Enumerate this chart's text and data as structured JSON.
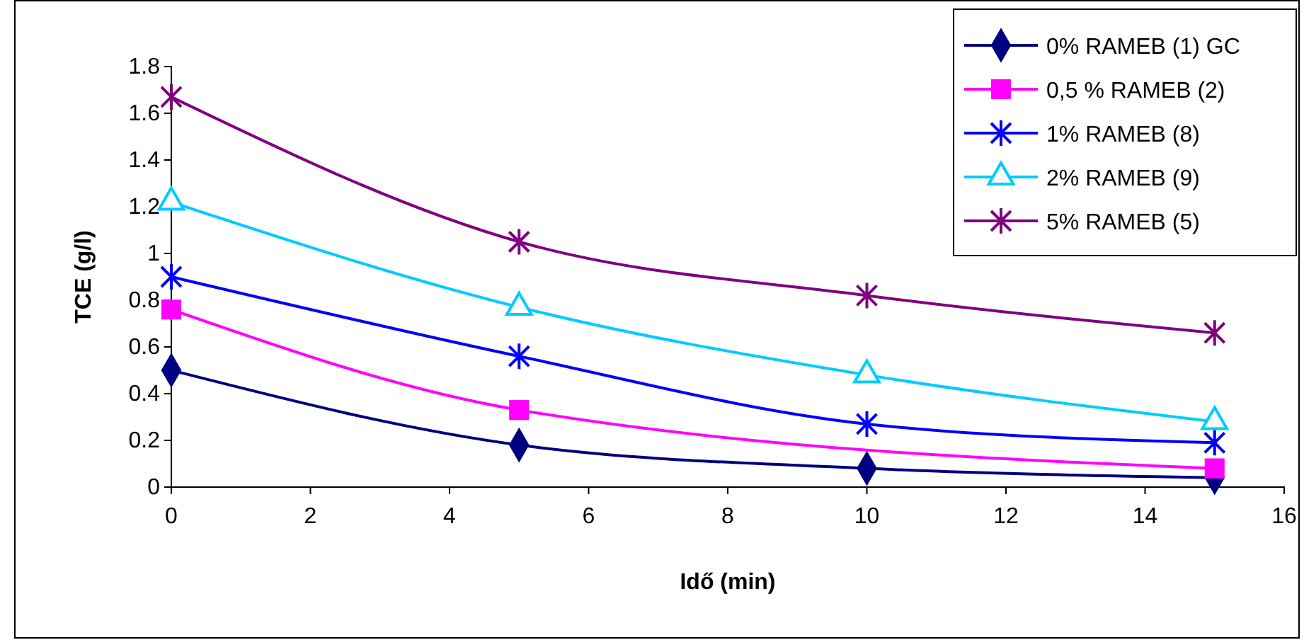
{
  "chart_data": {
    "type": "line",
    "xlabel": "Idő (min)",
    "ylabel": "TCE (g/l)",
    "x": [
      0,
      5,
      10,
      15
    ],
    "xlim": [
      0,
      16
    ],
    "xticks": [
      0,
      2,
      4,
      6,
      8,
      10,
      12,
      14,
      16
    ],
    "ylim": [
      0,
      1.8
    ],
    "yticks": [
      0,
      0.2,
      0.4,
      0.6,
      0.8,
      1,
      1.2,
      1.4,
      1.6,
      1.8
    ],
    "legend": "top right",
    "grid": false,
    "series": [
      {
        "name": "0% RAMEB (1) GC",
        "color": "#000080",
        "marker": "diamond",
        "values": [
          0.5,
          0.18,
          0.08,
          0.04
        ]
      },
      {
        "name": "0,5 % RAMEB (2)",
        "color": "#ff00ff",
        "marker": "square",
        "x": [
          0,
          5,
          15
        ],
        "values": [
          0.76,
          0.33,
          0.08
        ]
      },
      {
        "name": "1% RAMEB (8)",
        "color": "#0000ff",
        "marker": "cross",
        "values": [
          0.9,
          0.56,
          0.27,
          0.19
        ]
      },
      {
        "name": "2% RAMEB (9)",
        "color": "#00ccff",
        "marker": "triangle",
        "values": [
          1.22,
          0.77,
          0.48,
          0.28
        ]
      },
      {
        "name": "5% RAMEB (5)",
        "color": "#800080",
        "marker": "cross",
        "values": [
          1.67,
          1.05,
          0.82,
          0.66
        ]
      }
    ]
  }
}
